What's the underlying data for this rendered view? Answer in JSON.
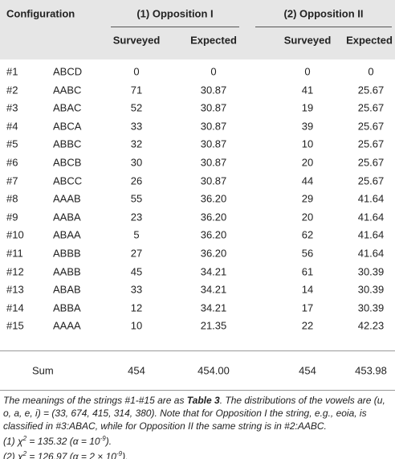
{
  "table": {
    "header": {
      "configuration": "Configuration",
      "groups": [
        "(1) Opposition I",
        "(2) Opposition II"
      ],
      "columns": [
        "Surveyed",
        "Expected",
        "Surveyed",
        "Expected"
      ]
    },
    "rows": [
      [
        "#1",
        "ABCD",
        "0",
        "0",
        "0",
        "0"
      ],
      [
        "#2",
        "AABC",
        "71",
        "30.87",
        "41",
        "25.67"
      ],
      [
        "#3",
        "ABAC",
        "52",
        "30.87",
        "19",
        "25.67"
      ],
      [
        "#4",
        "ABCA",
        "33",
        "30.87",
        "39",
        "25.67"
      ],
      [
        "#5",
        "ABBC",
        "32",
        "30.87",
        "10",
        "25.67"
      ],
      [
        "#6",
        "ABCB",
        "30",
        "30.87",
        "20",
        "25.67"
      ],
      [
        "#7",
        "ABCC",
        "26",
        "30.87",
        "44",
        "25.67"
      ],
      [
        "#8",
        "AAAB",
        "55",
        "36.20",
        "29",
        "41.64"
      ],
      [
        "#9",
        "AABA",
        "23",
        "36.20",
        "20",
        "41.64"
      ],
      [
        "#10",
        "ABAA",
        "5",
        "36.20",
        "62",
        "41.64"
      ],
      [
        "#11",
        "ABBB",
        "27",
        "36.20",
        "56",
        "41.64"
      ],
      [
        "#12",
        "AABB",
        "45",
        "34.21",
        "61",
        "30.39"
      ],
      [
        "#13",
        "ABAB",
        "33",
        "34.21",
        "14",
        "30.39"
      ],
      [
        "#14",
        "ABBA",
        "12",
        "34.21",
        "17",
        "30.39"
      ],
      [
        "#15",
        "AAAA",
        "10",
        "21.35",
        "22",
        "42.23"
      ]
    ],
    "sum": [
      "Sum",
      "454",
      "454.00",
      "454",
      "453.98"
    ]
  },
  "notes": [
    [
      "The meanings of the strings #1-#15 are as ",
      "Table 3",
      ". The distributions of the vowels are (u, o, a, e, i) = (33, 674, 415, 314, 380). Note that for Opposition I the string, e.g., eoia, is classified in #3:ABAC, while for Opposition II the same string is in #2:AABC."
    ],
    [
      "(1) χ",
      "2",
      " = 135.32 (α = 10",
      "-9",
      ")."
    ],
    [
      "(2) χ",
      "2",
      " = 126.97 (α = 2 × 10",
      "-9",
      ")."
    ]
  ]
}
